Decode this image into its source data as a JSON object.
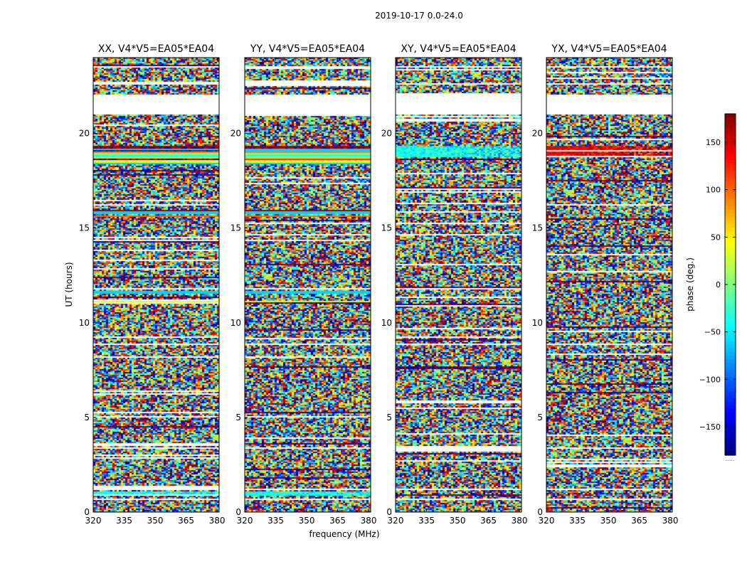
{
  "figure": {
    "suptitle": "2019-10-17 0.0-24.0",
    "xlabel": "frequency (MHz)",
    "ylabel": "UT (hours)"
  },
  "chart_data": {
    "type": "heatmap",
    "x": {
      "range": [
        320,
        381
      ],
      "ticks": [
        320,
        335,
        350,
        365,
        380
      ],
      "tick_labels": [
        "320",
        "335",
        "350",
        "365",
        "380"
      ]
    },
    "y": {
      "range": [
        0,
        24
      ],
      "ticks": [
        0,
        5,
        10,
        15,
        20
      ],
      "tick_labels": [
        "0",
        "5",
        "10",
        "15",
        "20"
      ]
    },
    "panels": [
      {
        "title": "XX, V4*V5=EA05*EA04",
        "coherent_bands": [
          [
            0.9,
            1.1,
            -40,
            60
          ],
          [
            15.9,
            16.0,
            170,
            0
          ],
          [
            15.6,
            15.7,
            100,
            20
          ],
          [
            15.8,
            15.9,
            -60,
            0
          ],
          [
            11.1,
            11.2,
            30,
            0
          ],
          [
            11.6,
            11.7,
            -60,
            0
          ],
          [
            18.4,
            18.5,
            -60,
            0
          ],
          [
            18.5,
            18.6,
            30,
            0
          ],
          [
            18.6,
            18.7,
            120,
            0
          ],
          [
            18.7,
            18.8,
            60,
            0
          ],
          [
            18.8,
            18.9,
            -30,
            0
          ],
          [
            18.9,
            19.0,
            0,
            0
          ],
          [
            19.0,
            19.1,
            90,
            0
          ],
          [
            19.1,
            19.2,
            -60,
            0
          ],
          [
            19.2,
            19.3,
            40,
            0
          ],
          [
            19.3,
            19.4,
            170,
            0
          ]
        ]
      },
      {
        "title": "YY, V4*V5=EA05*EA04",
        "coherent_bands": [
          [
            0.9,
            1.1,
            -40,
            60
          ],
          [
            15.9,
            16.0,
            170,
            0
          ],
          [
            15.6,
            15.7,
            100,
            20
          ],
          [
            15.8,
            15.9,
            -60,
            0
          ],
          [
            11.1,
            11.2,
            30,
            0
          ],
          [
            11.6,
            11.7,
            -60,
            0
          ],
          [
            18.4,
            18.5,
            -60,
            0
          ],
          [
            18.5,
            18.6,
            30,
            0
          ],
          [
            18.6,
            18.7,
            120,
            0
          ],
          [
            18.7,
            18.8,
            60,
            0
          ],
          [
            18.8,
            18.9,
            -30,
            0
          ],
          [
            18.9,
            19.0,
            0,
            0
          ],
          [
            19.0,
            19.1,
            90,
            0
          ],
          [
            19.1,
            19.2,
            -60,
            0
          ],
          [
            19.2,
            19.3,
            40,
            0
          ],
          [
            19.3,
            19.4,
            170,
            0
          ]
        ]
      },
      {
        "title": "XY, V4*V5=EA05*EA04",
        "coherent_bands": [
          [
            18.8,
            19.4,
            -40,
            90
          ]
        ]
      },
      {
        "title": "YX, V4*V5=EA05*EA04",
        "coherent_bands": [
          [
            18.8,
            19.4,
            140,
            90
          ]
        ]
      }
    ],
    "flagged_hours": [
      [
        21.0,
        22.1
      ],
      [
        21.9,
        22.0
      ],
      [
        22.6,
        22.65
      ],
      [
        23.5,
        23.55
      ],
      [
        8.85,
        8.95
      ],
      [
        18.0,
        18.05
      ],
      [
        17.1,
        17.15
      ],
      [
        16.8,
        16.85
      ],
      [
        3.4,
        3.45
      ],
      [
        1.2,
        1.25
      ],
      [
        1.55,
        1.6
      ],
      [
        0.7,
        0.75
      ],
      [
        6.8,
        6.85
      ]
    ],
    "colorbar": {
      "label": "phase (deg.)",
      "range": [
        -180,
        180
      ],
      "ticks": [
        150,
        100,
        50,
        0,
        -50,
        -100,
        -150
      ],
      "tick_labels": [
        "150",
        "100",
        "50",
        "0",
        "−50",
        "−100",
        "−150"
      ],
      "colormap": "jet",
      "under_label": "....."
    }
  }
}
